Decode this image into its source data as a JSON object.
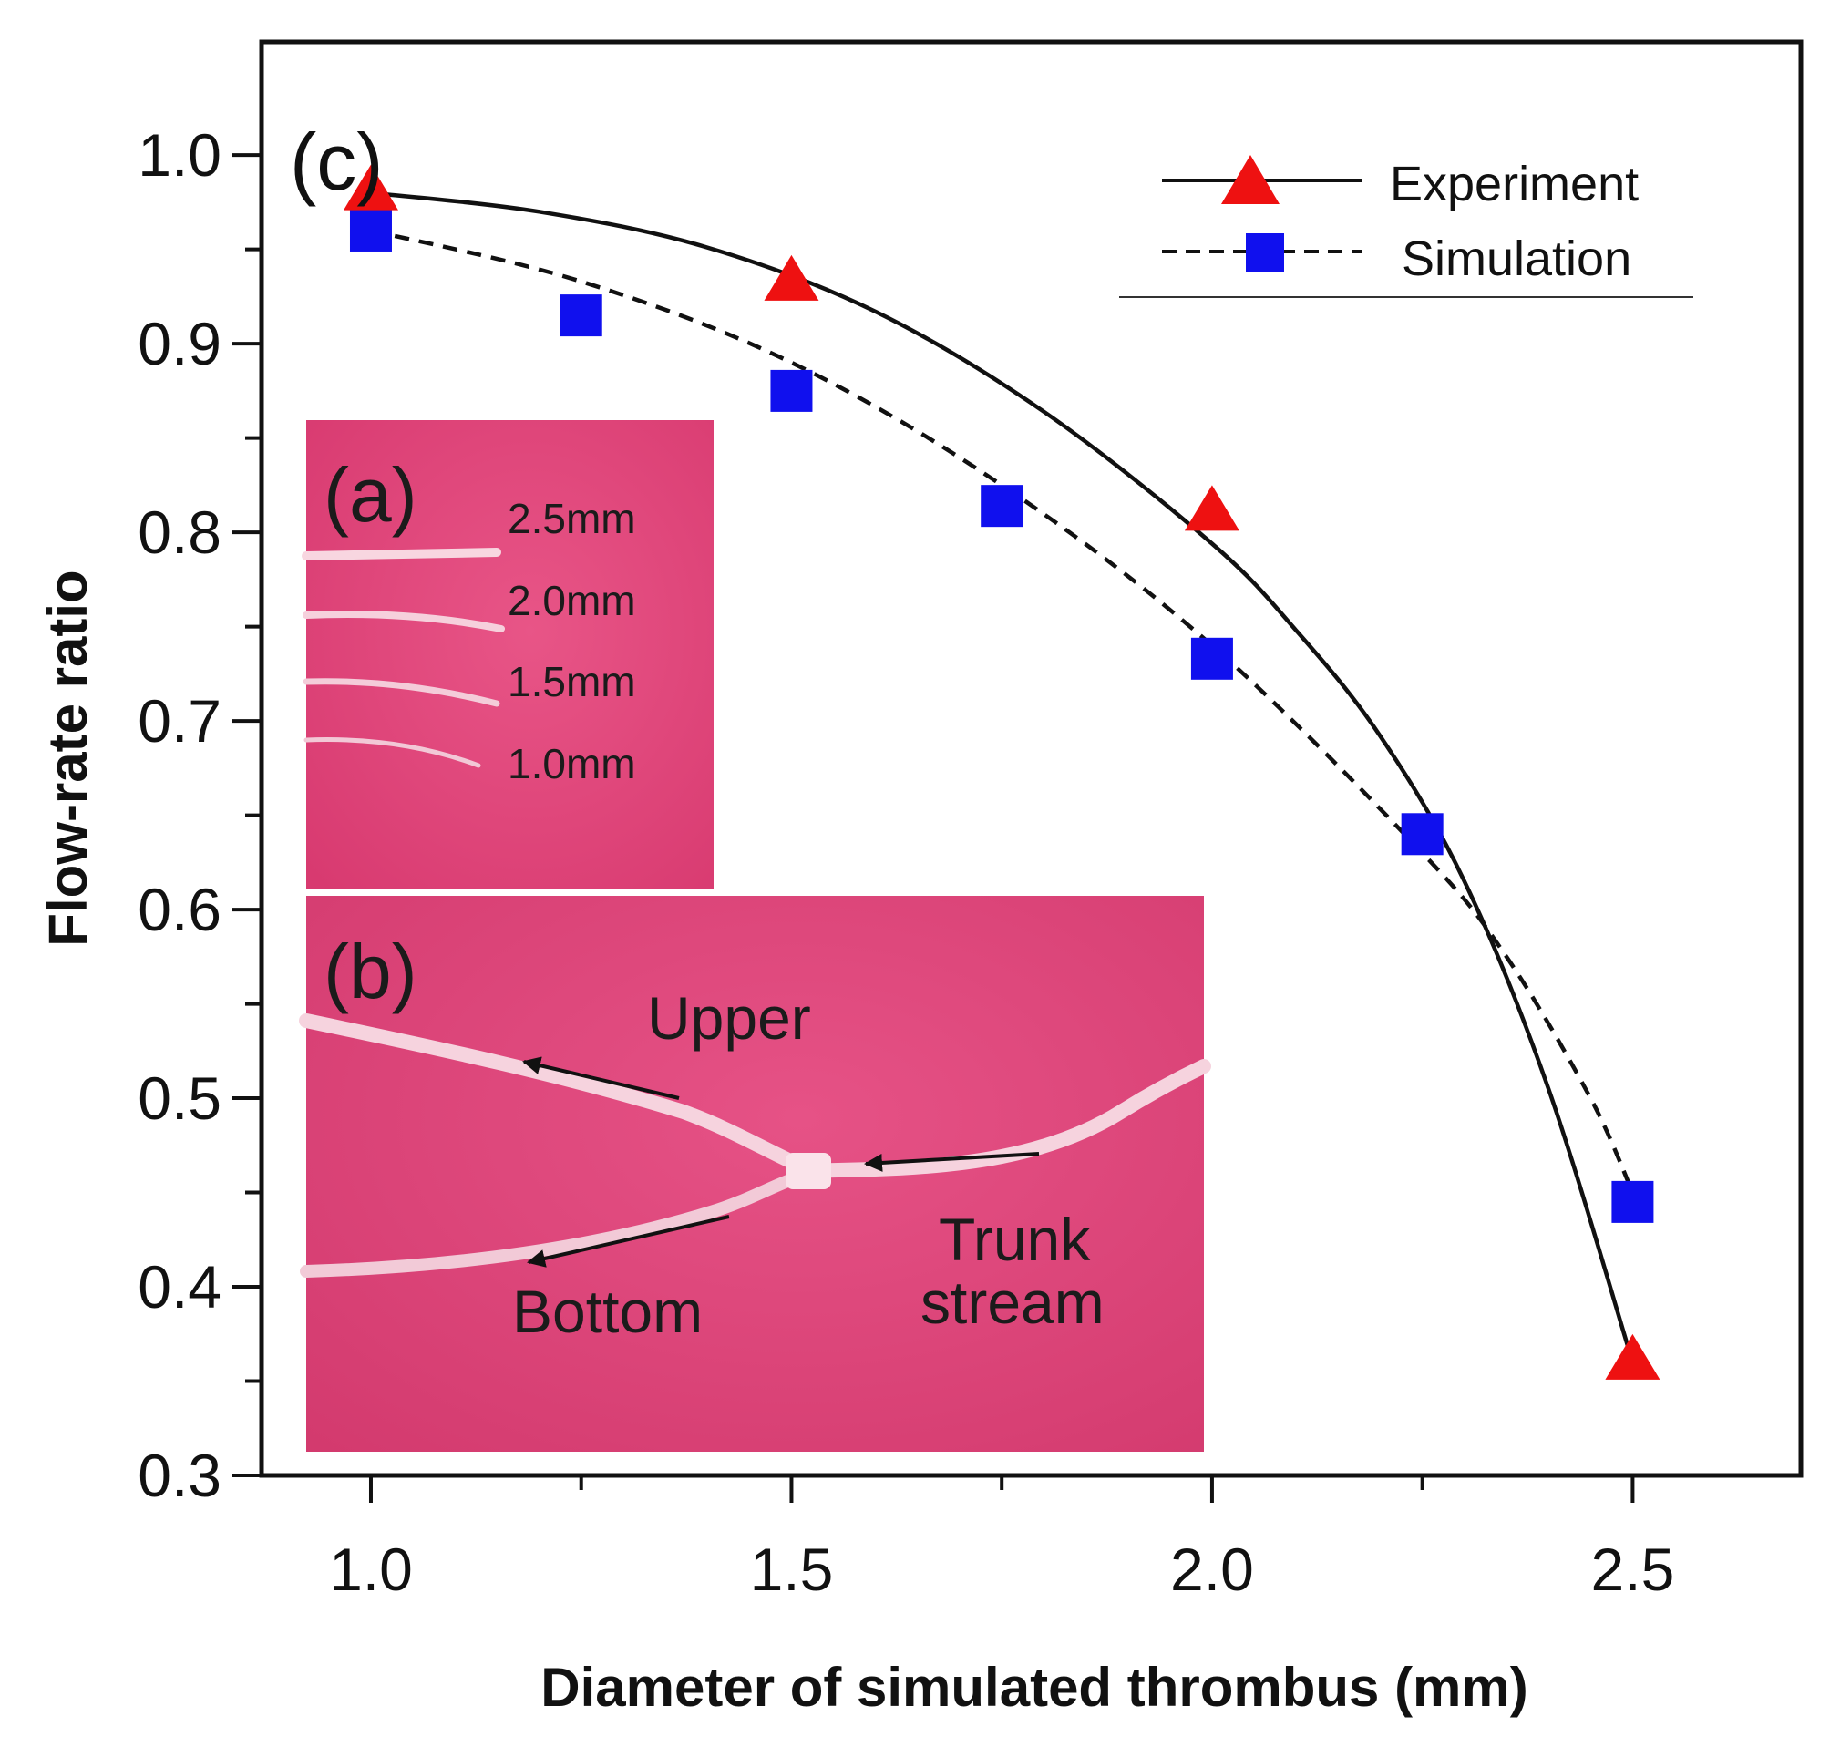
{
  "chart_data": {
    "type": "scatter",
    "title": "",
    "panel_label": "(c)",
    "xlabel": "Diameter of simulated thrombus (mm)",
    "ylabel": "Flow-rate ratio",
    "xlim": [
      0.87,
      2.7
    ],
    "ylim": [
      0.3,
      1.06
    ],
    "xticks": [
      1.0,
      1.5,
      2.0,
      2.5
    ],
    "xtick_labels": [
      "1.0",
      "1.5",
      "2.0",
      "2.5"
    ],
    "xminor": [
      1.25,
      1.75,
      2.25
    ],
    "yticks": [
      0.3,
      0.4,
      0.5,
      0.6,
      0.7,
      0.8,
      0.9,
      1.0
    ],
    "ytick_labels": [
      "0.3",
      "0.4",
      "0.5",
      "0.6",
      "0.7",
      "0.8",
      "0.9",
      "1.0"
    ],
    "yminor": [
      0.35,
      0.45,
      0.55,
      0.65,
      0.75,
      0.85,
      0.95
    ],
    "grid": false,
    "legend_position": "top-right",
    "series": [
      {
        "name": "Experiment",
        "marker": "triangle",
        "color": "#ee1111",
        "line_style": "solid",
        "points": [
          [
            1.0,
            0.98
          ],
          [
            1.5,
            0.932
          ],
          [
            2.0,
            0.81
          ],
          [
            2.5,
            0.36
          ]
        ],
        "fit_curve": [
          [
            1.0,
            0.98
          ],
          [
            1.2,
            0.97
          ],
          [
            1.4,
            0.951
          ],
          [
            1.6,
            0.917
          ],
          [
            1.8,
            0.864
          ],
          [
            2.0,
            0.794
          ],
          [
            2.1,
            0.748
          ],
          [
            2.2,
            0.692
          ],
          [
            2.3,
            0.615
          ],
          [
            2.4,
            0.505
          ],
          [
            2.5,
            0.36
          ]
        ]
      },
      {
        "name": "Simulation",
        "marker": "square",
        "color": "#1010ee",
        "line_style": "dashed",
        "points": [
          [
            1.0,
            0.96
          ],
          [
            1.25,
            0.915
          ],
          [
            1.5,
            0.875
          ],
          [
            1.75,
            0.814
          ],
          [
            2.0,
            0.733
          ],
          [
            2.25,
            0.64
          ],
          [
            2.5,
            0.445
          ]
        ],
        "fit_curve": [
          [
            1.0,
            0.96
          ],
          [
            1.25,
            0.933
          ],
          [
            1.5,
            0.89
          ],
          [
            1.75,
            0.825
          ],
          [
            2.0,
            0.74
          ],
          [
            2.25,
            0.63
          ],
          [
            2.35,
            0.575
          ],
          [
            2.45,
            0.5
          ],
          [
            2.5,
            0.45
          ]
        ]
      }
    ]
  },
  "insets": {
    "a": {
      "label": "(a)",
      "tube_labels": [
        "2.5mm",
        "2.0mm",
        "1.5mm",
        "1.0mm"
      ]
    },
    "b": {
      "label": "(b)",
      "upper": "Upper",
      "bottom": "Bottom",
      "trunk_line1": "Trunk",
      "trunk_line2": "stream"
    }
  },
  "colors": {
    "photo_background": "#e0467a",
    "tube": "#f8d6e0",
    "axis": "#111111"
  }
}
